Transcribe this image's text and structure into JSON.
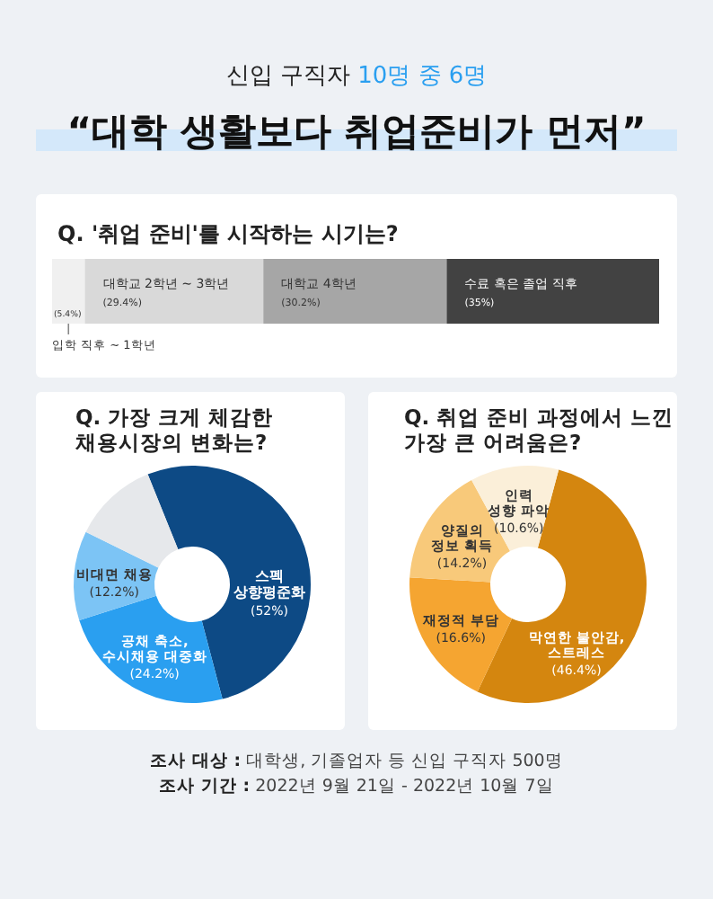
{
  "chart_data": [
    {
      "type": "bar",
      "orientation": "horizontal",
      "stacked": true,
      "title": "Q. '취업 준비'를 시작하는 시기는?",
      "categories": [
        null
      ],
      "xlim": [
        0,
        100
      ],
      "tick_labels": false,
      "annotations": [
        "신입 구직자 10명 중 6명",
        "“대학 생활보다 취업준비가 먼저”"
      ],
      "series": [
        {
          "name": "입학 직후 ~ 1학년",
          "color": "#f0f0f0",
          "values": [
            5.4
          ],
          "value_labels": [
            "(5.4%)"
          ]
        },
        {
          "name": "대학교 2학년 ~ 3학년",
          "color": "#d9d9d9",
          "values": [
            29.4
          ],
          "value_labels": [
            "(29.4%)"
          ]
        },
        {
          "name": "대학교 4학년",
          "color": "#a6a6a6",
          "values": [
            30.2
          ],
          "value_labels": [
            "(30.2%)"
          ]
        },
        {
          "name": "수료 혹은 졸업 직후",
          "color": "#424242",
          "values": [
            35
          ],
          "value_labels": [
            "(35%)"
          ]
        }
      ]
    },
    {
      "type": "donut",
      "title": "Q. 가장 크게 체감한\n채용시장의 변화는?",
      "categories": [
        "스펙\n상향평준화",
        "공채 축소,\n수시채용 대중화",
        "비대면 채용",
        null
      ],
      "values": [
        52,
        24.2,
        12.2,
        11.6
      ],
      "value_labels": [
        "(52%)",
        "(24.2%)",
        "(12.2%)",
        null
      ],
      "colors": [
        "#0d4a85",
        "#2a9ff0",
        "#7cc4f5",
        "#e6e8eb"
      ]
    },
    {
      "type": "donut",
      "title": "Q. 취업 준비 과정에서 느낀\n가장 큰 어려움은?",
      "categories": [
        "막연한 불안감,\n스트레스",
        "재정적 부담",
        "양질의\n정보 획득",
        "인력\n성향 파악"
      ],
      "values": [
        46.4,
        16.6,
        14.2,
        10.6
      ],
      "value_labels": [
        "(46.4%)",
        "(16.6%)",
        "(14.2%)",
        "(10.6%)"
      ],
      "colors": [
        "#d4860f",
        "#f5a531",
        "#f8c97a",
        "#fbefd9"
      ],
      "annotations": [
        "조사 대상 : 대학생, 기졸업자 등 신입 구직자 500명",
        "조사 기간 : 2022년 9월 21일 - 2022년 10월 7일"
      ]
    }
  ]
}
